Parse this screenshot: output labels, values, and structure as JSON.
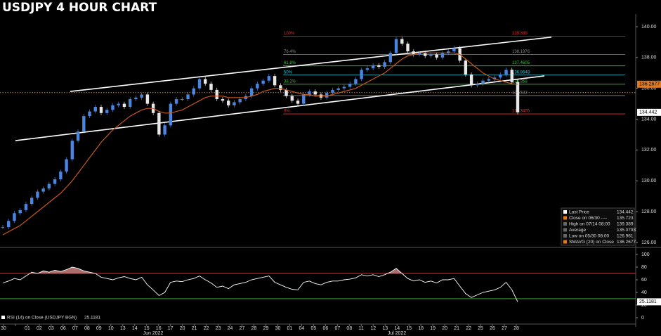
{
  "chart_data": [
    {
      "type": "candlestick",
      "title": "USDJPY 4 HOUR CHART",
      "x_labels": [
        "30",
        null,
        "01",
        "02",
        "03",
        "06",
        "07",
        "08",
        "09",
        "10",
        "13",
        "14",
        "15",
        "16",
        "17",
        "20",
        "21",
        "22",
        "23",
        "24",
        "27",
        "28",
        "29",
        "30",
        "01",
        "04",
        "05",
        "06",
        "07",
        "08",
        "11",
        "12",
        "13",
        "14",
        "15",
        "18",
        "19",
        "20",
        "21",
        "22",
        "25",
        "26",
        "27",
        "28"
      ],
      "months": [
        "Jun 2022",
        "Jul 2022"
      ],
      "ylim": [
        125.77,
        140.82
      ],
      "yticks": [
        {
          "value": 126,
          "label": "126.00"
        },
        {
          "value": 128,
          "label": "128.00"
        },
        {
          "value": 130,
          "label": "130.00"
        },
        {
          "value": 132,
          "label": "132.00"
        },
        {
          "value": 134,
          "label": "134.00"
        },
        {
          "value": 136,
          "label": "136.00"
        },
        {
          "value": 138,
          "label": "138.00"
        },
        {
          "value": 140,
          "label": "140.00"
        }
      ],
      "up_color": "#4a86e0",
      "down_color": "#e8e8e8",
      "series": [
        {
          "color": "#4a86e0",
          "values": [
            127.0,
            127.4,
            127.9,
            128.1,
            128.5,
            128.9,
            129.3,
            129.5,
            129.8,
            130.1,
            130.6,
            131.4,
            132.6,
            133.2,
            134.2,
            134.5,
            134.8,
            134.4,
            134.6,
            134.9,
            135.0,
            134.8,
            135.3,
            135.4,
            135.6,
            135.0,
            134.4,
            133.0,
            133.6,
            135.0,
            135.3,
            135.3,
            135.6,
            136.0,
            136.6,
            136.3,
            135.9,
            135.3,
            135.2,
            134.9,
            135.1,
            135.3,
            135.5,
            136.0,
            136.3,
            136.5,
            136.8,
            136.2,
            135.9,
            135.5,
            135.2,
            135.0,
            135.6,
            135.8,
            135.6,
            135.4,
            135.7,
            135.9,
            136.0,
            136.1,
            136.3,
            136.6,
            137.2,
            137.3,
            137.5,
            137.4,
            137.7,
            138.3,
            139.2,
            138.9,
            138.4,
            138.2,
            138.3,
            138.1,
            138.2,
            138.0,
            138.3,
            138.4,
            138.6,
            137.8,
            136.9,
            136.2,
            136.3,
            136.5,
            136.6,
            136.7,
            136.9,
            137.2,
            136.4,
            134.442
          ]
        },
        {
          "color": "#c8581c",
          "values": [
            126.5,
            126.7,
            126.9,
            127.1,
            127.4,
            127.7,
            128.0,
            128.3,
            128.6,
            128.9,
            129.2,
            129.6,
            130.0,
            130.5,
            131.0,
            131.5,
            132.0,
            132.5,
            132.9,
            133.3,
            133.6,
            133.9,
            134.2,
            134.4,
            134.6,
            134.7,
            134.7,
            134.5,
            134.4,
            134.4,
            134.5,
            134.6,
            134.8,
            135.0,
            135.2,
            135.4,
            135.5,
            135.5,
            135.5,
            135.4,
            135.4,
            135.4,
            135.4,
            135.5,
            135.6,
            135.8,
            135.9,
            136.0,
            136.0,
            135.9,
            135.8,
            135.7,
            135.6,
            135.6,
            135.5,
            135.5,
            135.5,
            135.6,
            135.7,
            135.8,
            135.9,
            136.0,
            136.2,
            136.4,
            136.6,
            136.8,
            137.0,
            137.3,
            137.6,
            137.9,
            138.1,
            138.2,
            138.3,
            138.3,
            138.3,
            138.3,
            138.3,
            138.3,
            138.3,
            138.2,
            137.9,
            137.6,
            137.3,
            137.0,
            136.8,
            136.6,
            136.5,
            136.4,
            136.3,
            136.2677
          ]
        }
      ],
      "trendlines": [
        {
          "from": 135.8,
          "to": 139.32,
          "color": "#ffffff"
        },
        {
          "from": 132.61,
          "to": 136.81,
          "color": "#ffffff"
        }
      ],
      "reference_line": {
        "value": 135.723,
        "color": "#e07a20"
      },
      "fib_levels": [
        {
          "label": "100%",
          "value": 139.389,
          "color": "#d83030"
        },
        {
          "label": "76.4%",
          "value": 138.1976,
          "color": "#888888"
        },
        {
          "label": "61.8%",
          "value": 137.4605,
          "color": "#3fbf3f"
        },
        {
          "label": "50%",
          "value": 136.8648,
          "color": "#2fc8d8"
        },
        {
          "label": "38.2%",
          "value": 136.269,
          "color": "#3fbf3f"
        },
        {
          "label": null,
          "value": 135.532,
          "color": "#888888"
        },
        {
          "label": "0%",
          "value": 134.3405,
          "color": "#d83030"
        }
      ],
      "badges": [
        {
          "value": 136.2677,
          "color": "#e07a20",
          "text_color": "#000"
        },
        {
          "value": 134.442,
          "color": "#ffffff",
          "text_color": "#000"
        }
      ],
      "legend": [
        {
          "label": "Last Price",
          "value": 134.442,
          "color": "#ffffff"
        },
        {
          "label": "Close on 06/30 ----",
          "value": 135.723,
          "color": "#e07a20"
        },
        {
          "label": "High on 07/14 08:00",
          "value": 139.389,
          "color": "#666666"
        },
        {
          "label": "Average",
          "value": 135.0793,
          "color": "#666666"
        },
        {
          "label": "Low on 05/30 08:00",
          "value": 126.961,
          "color": "#666666"
        },
        {
          "label": "SMAVG (20)  on Close",
          "value": 136.2677,
          "color": "#e07a20"
        }
      ]
    },
    {
      "type": "line",
      "ylim": [
        -6.7,
        107.8
      ],
      "yticks": [
        0,
        20,
        40,
        60,
        80,
        100
      ],
      "levels": [
        {
          "value": 70,
          "color": "#d83030"
        },
        {
          "value": 30,
          "color": "#3fbf3f"
        }
      ],
      "overbought_fill": "#c98080",
      "series": [
        {
          "color": "#ffffff",
          "values": [
            55,
            58,
            62,
            60,
            66,
            72,
            70,
            74,
            72,
            75,
            73,
            76,
            80,
            78,
            74,
            72,
            70,
            64,
            62,
            60,
            63,
            65,
            62,
            60,
            64,
            52,
            44,
            35,
            40,
            56,
            58,
            57,
            60,
            62,
            66,
            60,
            55,
            48,
            50,
            46,
            52,
            54,
            56,
            60,
            62,
            64,
            66,
            56,
            52,
            48,
            45,
            44,
            56,
            58,
            54,
            52,
            56,
            58,
            58,
            60,
            61,
            63,
            68,
            66,
            68,
            65,
            68,
            72,
            78,
            70,
            62,
            58,
            60,
            56,
            58,
            55,
            60,
            60,
            62,
            50,
            38,
            32,
            36,
            40,
            42,
            44,
            48,
            56,
            44,
            25.1181
          ]
        }
      ],
      "legend": [
        {
          "label": "RSI (14)  on Close (USDJPY BGN)",
          "value": 25.1181,
          "color": "#ffffff"
        }
      ],
      "badges": [
        {
          "value": 25.1181,
          "color": "#ffffff",
          "text_color": "#000"
        }
      ]
    }
  ]
}
